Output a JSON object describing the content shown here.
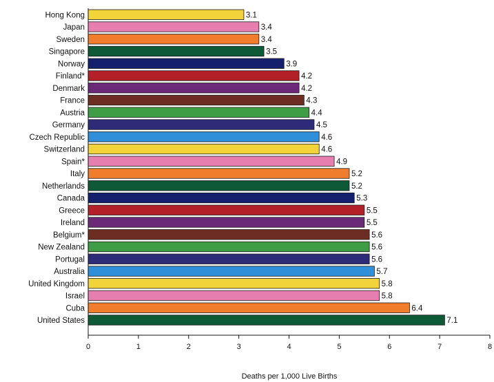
{
  "chart_data": {
    "type": "bar",
    "orientation": "horizontal",
    "categories": [
      "Hong Kong",
      "Japan",
      "Sweden",
      "Singapore",
      "Norway",
      "Finland*",
      "Denmark",
      "France",
      "Austria",
      "Germany",
      "Czech Republic",
      "Switzerland",
      "Spain*",
      "Italy",
      "Netherlands",
      "Canada",
      "Greece",
      "Ireland",
      "Belgium*",
      "New Zealand",
      "Portugal",
      "Australia",
      "United Kingdom",
      "Israel",
      "Cuba",
      "United States"
    ],
    "values": [
      3.1,
      3.4,
      3.4,
      3.5,
      3.9,
      4.2,
      4.2,
      4.3,
      4.4,
      4.5,
      4.6,
      4.6,
      4.9,
      5.2,
      5.2,
      5.3,
      5.5,
      5.5,
      5.6,
      5.6,
      5.6,
      5.7,
      5.8,
      5.8,
      6.4,
      7.1
    ],
    "value_labels": [
      "3.1",
      "3.4",
      "3.4",
      "3.5",
      "3.9",
      "4.2",
      "4.2",
      "4.3",
      "4.4",
      "4.5",
      "4.6",
      "4.6",
      "4.9",
      "5.2",
      "5.2",
      "5.3",
      "5.5",
      "5.5",
      "5.6",
      "5.6",
      "5.6",
      "5.7",
      "5.8",
      "5.8",
      "6.4",
      "7.1"
    ],
    "bar_colors": [
      "#f2d43a",
      "#e67fb0",
      "#ef7d2b",
      "#0f5a36",
      "#141f6e",
      "#b32027",
      "#6a2a77",
      "#6e2d22",
      "#3f9d45",
      "#2e2b78",
      "#2f8fd8",
      "#f2d43a",
      "#e67fb0",
      "#ef7d2b",
      "#0f5a36",
      "#141f6e",
      "#b32027",
      "#6a2a77",
      "#6e2d22",
      "#3f9d45",
      "#2e2b78",
      "#2f8fd8",
      "#f2d43a",
      "#e67fb0",
      "#ef7d2b",
      "#0f5a36"
    ],
    "xlabel": "Deaths per 1,000 Live Births",
    "xlim": [
      0,
      8
    ],
    "xticks": [
      "0",
      "1",
      "2",
      "3",
      "4",
      "5",
      "6",
      "7",
      "8"
    ],
    "grid": false
  }
}
